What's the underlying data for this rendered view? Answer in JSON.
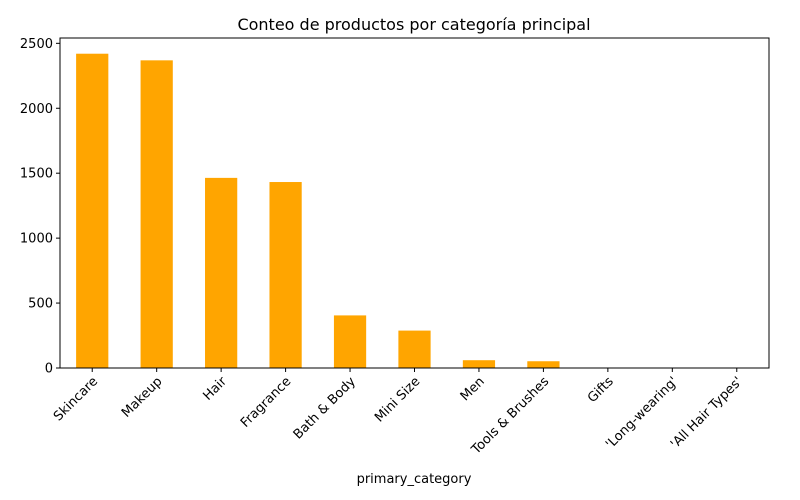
{
  "chart_data": {
    "type": "bar",
    "title": "Conteo de productos por categoría principal",
    "xlabel": "primary_category",
    "ylabel": "",
    "categories": [
      "Skincare",
      "Makeup",
      "Hair",
      "Fragrance",
      "Bath & Body",
      "Mini Size",
      "Men",
      "Tools & Brushes",
      "Gifts",
      "'Long-wearing'",
      "'All Hair Types'"
    ],
    "values": [
      2420,
      2369,
      1464,
      1432,
      405,
      288,
      60,
      52,
      1,
      1,
      1
    ],
    "ylim": [
      0,
      2541
    ],
    "yticks": [
      0,
      500,
      1000,
      1500,
      2000,
      2500
    ],
    "bar_color": "#ffa500",
    "grid": false,
    "legend": "none"
  }
}
